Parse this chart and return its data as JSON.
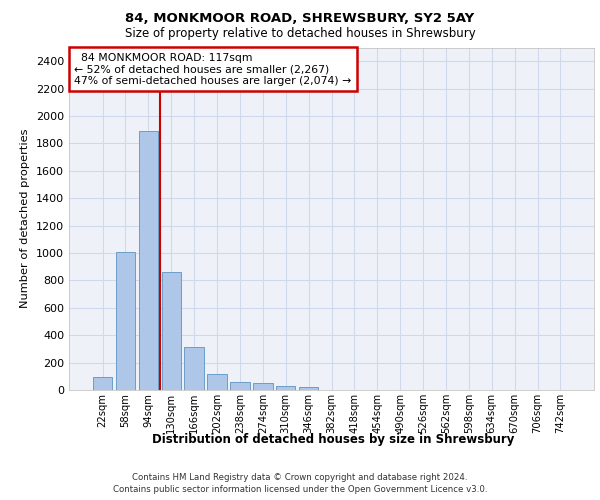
{
  "title_line1": "84, MONKMOOR ROAD, SHREWSBURY, SY2 5AY",
  "title_line2": "Size of property relative to detached houses in Shrewsbury",
  "xlabel": "Distribution of detached houses by size in Shrewsbury",
  "ylabel": "Number of detached properties",
  "footer_line1": "Contains HM Land Registry data © Crown copyright and database right 2024.",
  "footer_line2": "Contains public sector information licensed under the Open Government Licence v3.0.",
  "bar_labels": [
    "22sqm",
    "58sqm",
    "94sqm",
    "130sqm",
    "166sqm",
    "202sqm",
    "238sqm",
    "274sqm",
    "310sqm",
    "346sqm",
    "382sqm",
    "418sqm",
    "454sqm",
    "490sqm",
    "526sqm",
    "562sqm",
    "598sqm",
    "634sqm",
    "670sqm",
    "706sqm",
    "742sqm"
  ],
  "bar_values": [
    95,
    1010,
    1890,
    860,
    315,
    120,
    60,
    50,
    30,
    20,
    0,
    0,
    0,
    0,
    0,
    0,
    0,
    0,
    0,
    0,
    0
  ],
  "bar_color": "#aec6e8",
  "bar_edge_color": "#6a9ec8",
  "grid_color": "#d0d8ec",
  "bg_color": "#eef2f8",
  "property_label": "84 MONKMOOR ROAD: 117sqm",
  "pct_smaller": 52,
  "n_smaller": 2267,
  "pct_larger": 47,
  "n_larger": 2074,
  "vline_color": "#cc0000",
  "annotation_box_color": "#cc0000",
  "ylim": [
    0,
    2500
  ],
  "yticks": [
    0,
    200,
    400,
    600,
    800,
    1000,
    1200,
    1400,
    1600,
    1800,
    2000,
    2200,
    2400
  ]
}
